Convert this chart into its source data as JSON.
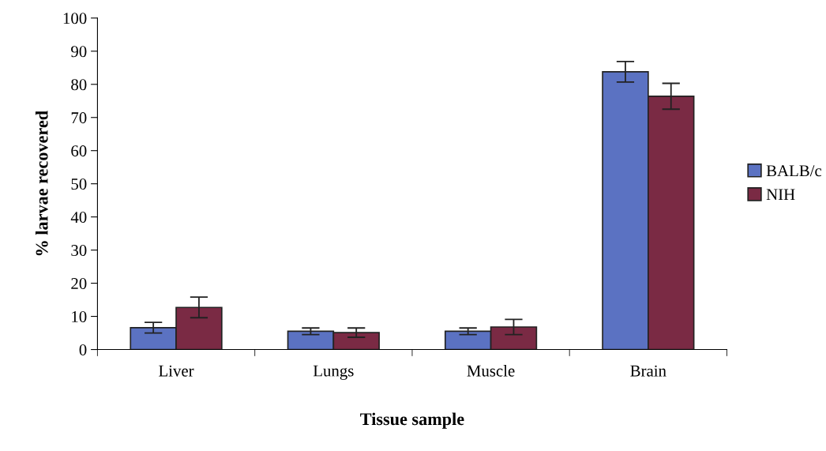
{
  "chart_data": {
    "type": "bar",
    "xlabel": "Tissue sample",
    "ylabel": "% larvae recovered",
    "categories": [
      "Liver",
      "Lungs",
      "Muscle",
      "Brain"
    ],
    "series": [
      {
        "name": "BALB/c",
        "color": "#5b72c2",
        "values": [
          6.6,
          5.5,
          5.5,
          83.8
        ],
        "errors": [
          1.6,
          1.0,
          1.0,
          3.1
        ]
      },
      {
        "name": "NIH",
        "color": "#7a2a44",
        "values": [
          12.7,
          5.1,
          6.8,
          76.4
        ],
        "errors": [
          3.1,
          1.4,
          2.3,
          3.9
        ]
      }
    ],
    "ylim": [
      0,
      100
    ],
    "yticks": [
      0,
      10,
      20,
      30,
      40,
      50,
      60,
      70,
      80,
      90,
      100
    ],
    "grid": false,
    "legend": "right"
  }
}
